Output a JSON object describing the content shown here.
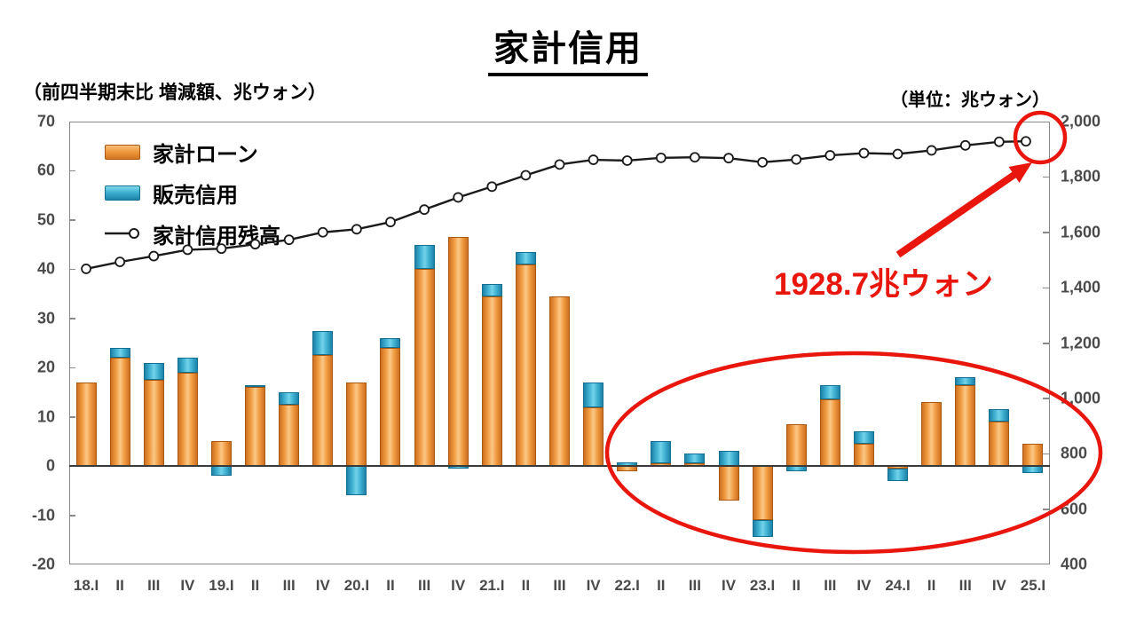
{
  "title": "家計信用",
  "subtitle_left": "（前四半期末比 増減額、兆ウォン）",
  "unit_label_right": "（単位：兆ウォン）",
  "annotation": {
    "value_label": "1928.7兆ウォン"
  },
  "legend": [
    {
      "label": "家計ローン",
      "type": "bar",
      "color": "#EF9A3F"
    },
    {
      "label": "販売信用",
      "type": "bar",
      "color": "#3FB0D1"
    },
    {
      "label": "家計信用残高",
      "type": "line",
      "color": "#1a1a1a"
    }
  ],
  "colors": {
    "loan_bar": "#EF9A3F",
    "credit_bar": "#3FB0D1",
    "balance_line": "#1a1a1a",
    "marker_fill": "#ffffff",
    "highlight_red": "#e8160c",
    "axis_text": "#4a4a4a"
  },
  "chart_data": {
    "type": "bar+line",
    "title": "家計信用",
    "left_axis_label": "（前四半期末比 増減額、兆ウォン）",
    "right_axis_label": "（単位：兆ウォン）",
    "categories": [
      "18.I",
      "18.II",
      "18.III",
      "18.IV",
      "19.I",
      "19.II",
      "19.III",
      "19.IV",
      "20.I",
      "20.II",
      "20.III",
      "20.IV",
      "21.I",
      "21.II",
      "21.III",
      "21.IV",
      "22.I",
      "22.II",
      "22.III",
      "22.IV",
      "23.I",
      "23.II",
      "23.III",
      "23.IV",
      "24.I",
      "24.II",
      "24.III",
      "24.IV",
      "25.I"
    ],
    "x_tick_labels": [
      "18.I",
      "II",
      "III",
      "IV",
      "19.I",
      "II",
      "III",
      "IV",
      "20.I",
      "II",
      "III",
      "IV",
      "21.I",
      "II",
      "III",
      "IV",
      "22.I",
      "II",
      "III",
      "IV",
      "23.I",
      "II",
      "III",
      "IV",
      "24.I",
      "II",
      "III",
      "IV",
      "25.I"
    ],
    "series": [
      {
        "name": "家計ローン",
        "type": "bar",
        "stack": true,
        "axis": "left",
        "values": [
          17,
          22,
          17.5,
          19,
          5,
          16,
          12.5,
          22.5,
          17,
          24,
          40,
          46.5,
          34.5,
          41,
          34.5,
          12,
          -1,
          0.5,
          0.5,
          -7,
          -11,
          8.5,
          13.5,
          4.5,
          -0.5,
          13,
          16.5,
          9,
          4.5
        ]
      },
      {
        "name": "販売信用",
        "type": "bar",
        "stack": true,
        "axis": "left",
        "values": [
          0,
          2,
          3.5,
          3,
          -2,
          0.5,
          2.5,
          5,
          -6,
          2,
          5,
          -0.5,
          2.5,
          2.5,
          0,
          5,
          0.7,
          4.5,
          2,
          3,
          -3.5,
          -1,
          3,
          2.5,
          -2.5,
          0,
          1.5,
          2.5,
          -1.5
        ]
      },
      {
        "name": "家計信用残高",
        "type": "line",
        "axis": "right",
        "values": [
          1468,
          1493,
          1514,
          1537,
          1541,
          1557,
          1573,
          1600,
          1611,
          1637,
          1682,
          1726,
          1765,
          1806,
          1845,
          1862,
          1859,
          1869,
          1871,
          1868,
          1853,
          1863,
          1878,
          1886,
          1883,
          1896,
          1914,
          1927,
          1928.7
        ]
      }
    ],
    "left_axis": {
      "min": -20,
      "max": 70,
      "tick_step": 10,
      "ticks": [
        "70",
        "60",
        "50",
        "40",
        "30",
        "20",
        "10",
        "0",
        "-10",
        "-20"
      ]
    },
    "right_axis": {
      "min": 400,
      "max": 2000,
      "tick_step": 200,
      "ticks": [
        "2,000",
        "1,800",
        "1,600",
        "1,400",
        "1,200",
        "1,000",
        "800",
        "600",
        "400"
      ]
    },
    "grid": false,
    "legend_position": "inside-top-left",
    "annotations": {
      "last_point_label": "1928.7兆ウォン",
      "circled_last_point": true,
      "ellipse_highlight_over": "22.I–25.I"
    }
  }
}
